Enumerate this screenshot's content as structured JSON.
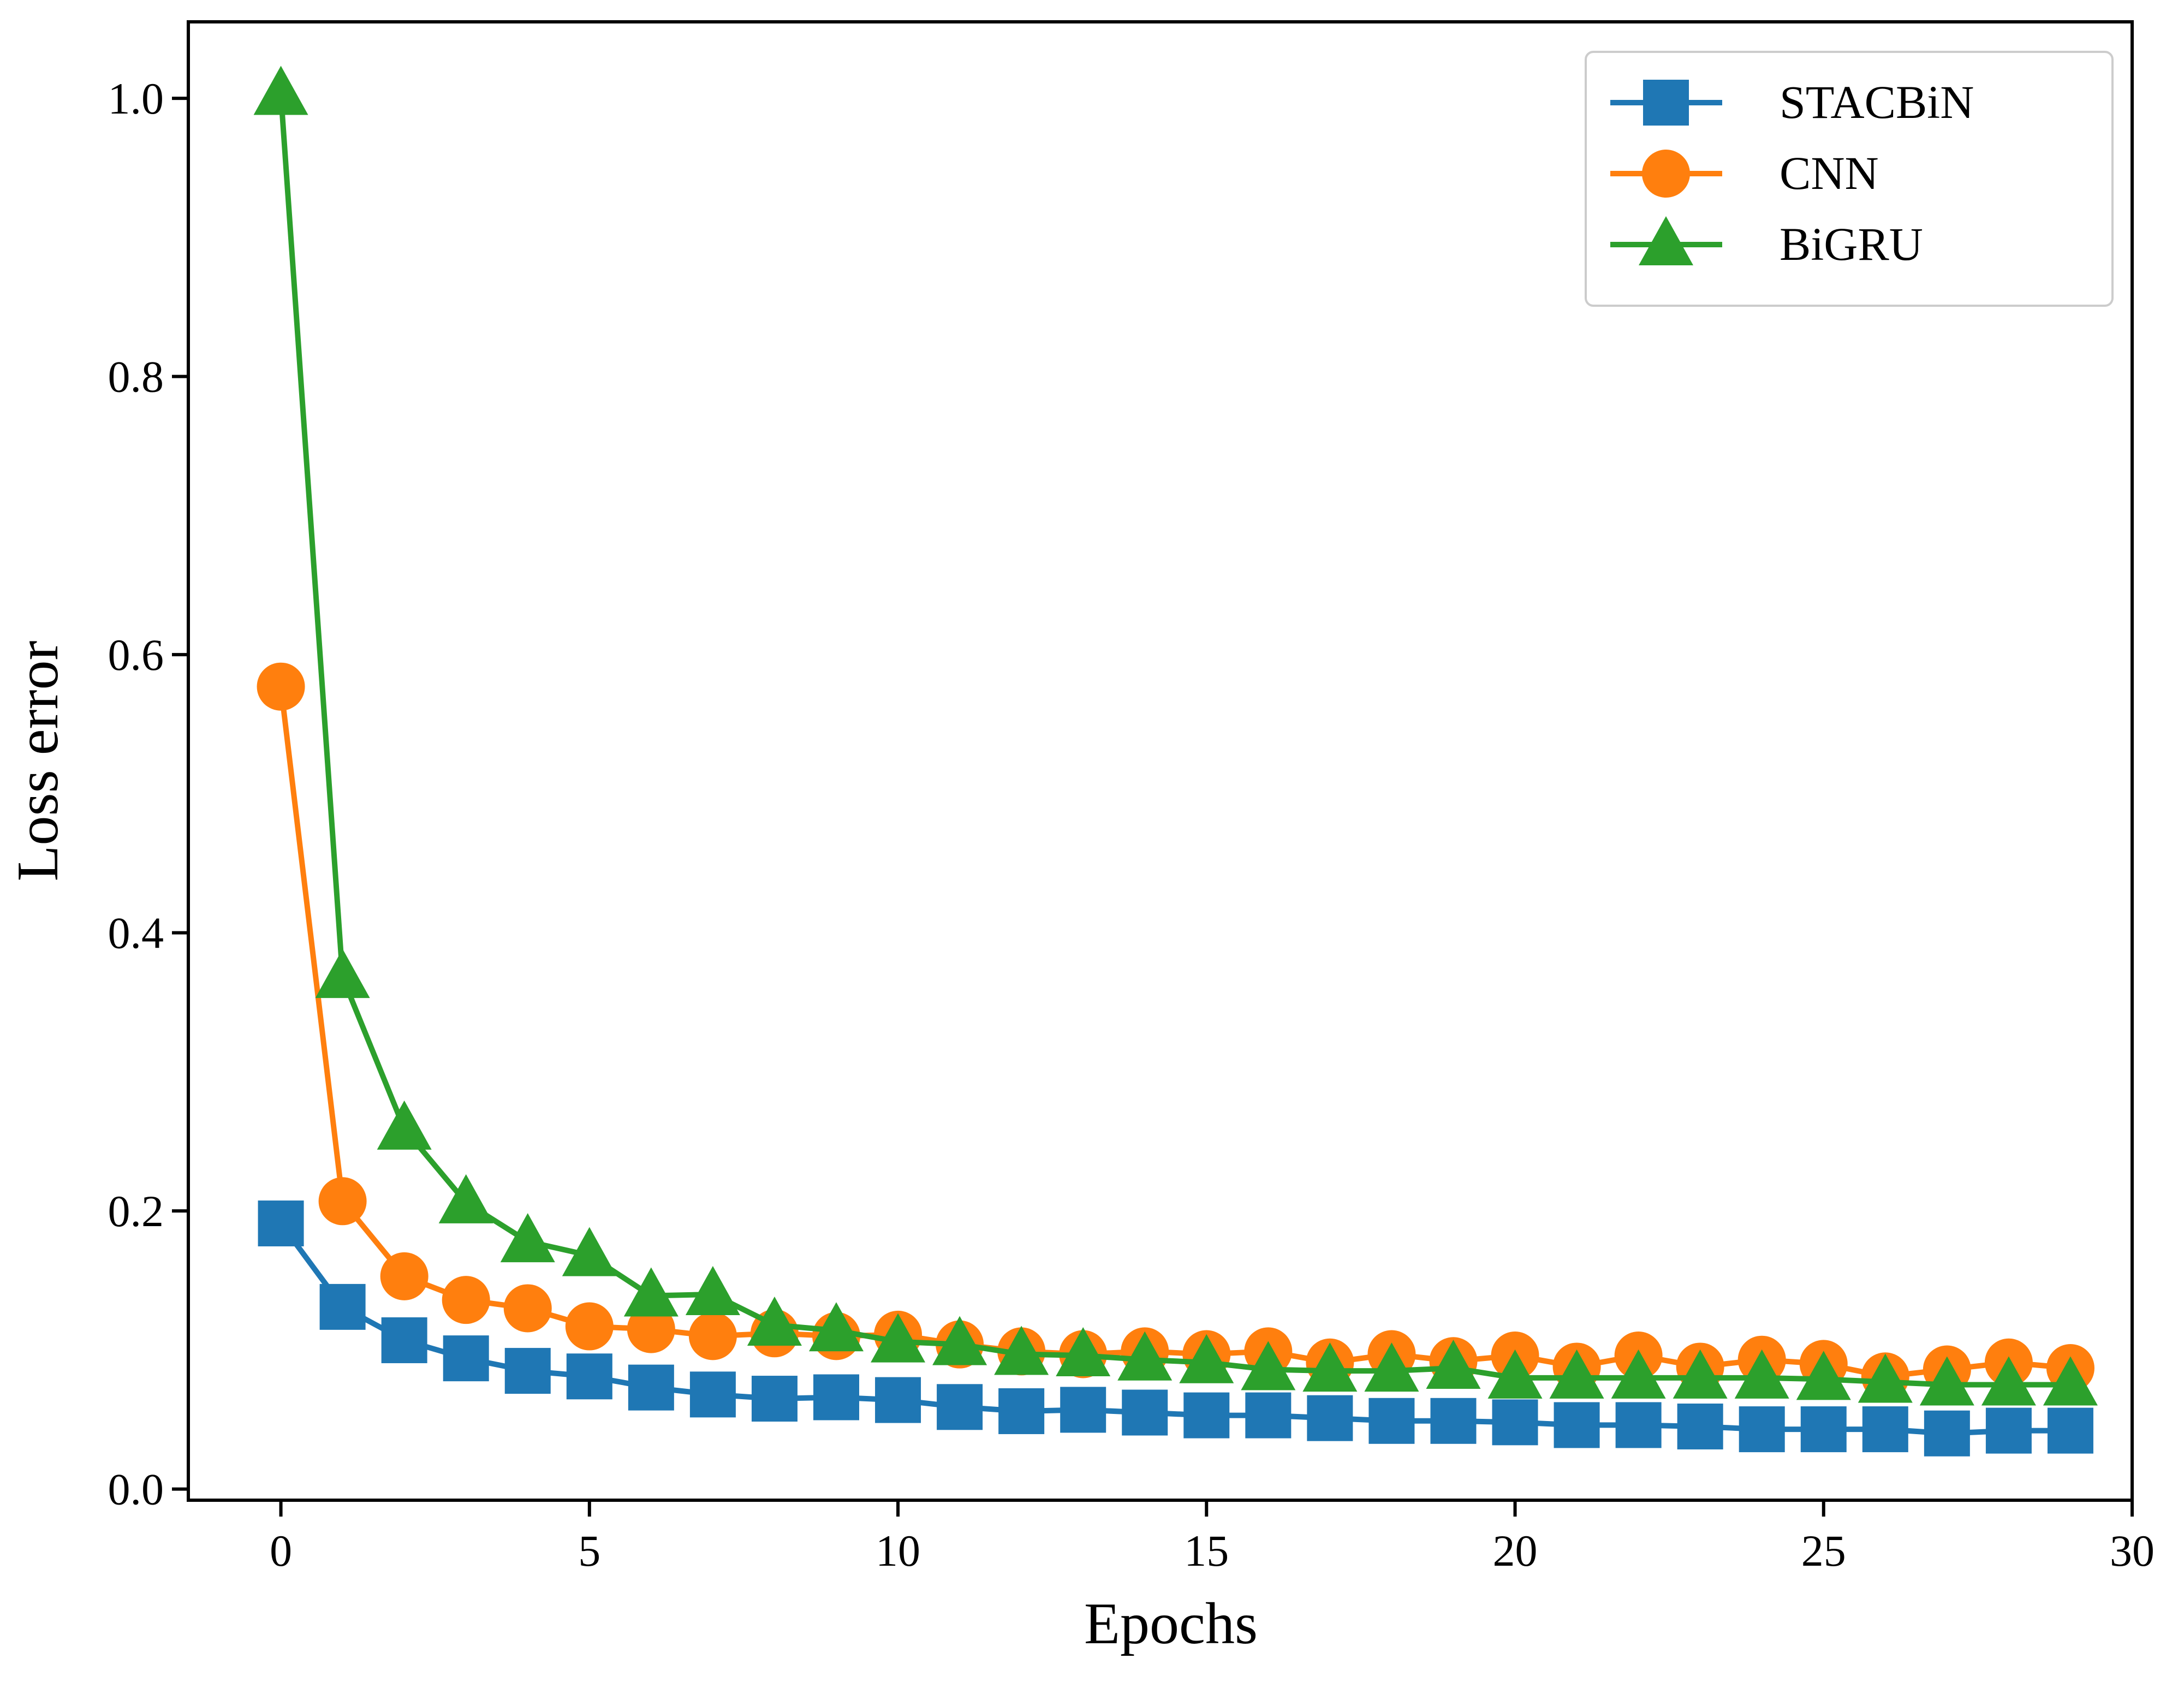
{
  "chart_data": {
    "type": "line",
    "title": "",
    "xlabel": "Epochs",
    "ylabel": "Loss error",
    "xlim": [
      -1.5,
      30
    ],
    "ylim": [
      -0.008,
      1.055
    ],
    "xticks": [
      0,
      5,
      10,
      15,
      20,
      25,
      30
    ],
    "xtick_labels": [
      "0",
      "5",
      "10",
      "15",
      "20",
      "25",
      "30"
    ],
    "yticks": [
      0.0,
      0.2,
      0.4,
      0.6,
      0.8,
      1.0
    ],
    "ytick_labels": [
      "0.0",
      "0.2",
      "0.4",
      "0.6",
      "0.8",
      "1.0"
    ],
    "grid": false,
    "legend_position": "top-right",
    "x": [
      0,
      1,
      2,
      3,
      4,
      5,
      6,
      7,
      8,
      9,
      10,
      11,
      12,
      13,
      14,
      15,
      16,
      17,
      18,
      19,
      20,
      21,
      22,
      23,
      24,
      25,
      26,
      27,
      28,
      29
    ],
    "series": [
      {
        "name": "STACBiN",
        "color": "#1f77b4",
        "marker": "square",
        "values": [
          0.191,
          0.131,
          0.107,
          0.094,
          0.085,
          0.081,
          0.073,
          0.068,
          0.065,
          0.066,
          0.064,
          0.059,
          0.056,
          0.057,
          0.055,
          0.053,
          0.053,
          0.051,
          0.049,
          0.049,
          0.048,
          0.046,
          0.046,
          0.045,
          0.043,
          0.043,
          0.043,
          0.04,
          0.042,
          0.042
        ]
      },
      {
        "name": "CNN",
        "color": "#ff7f0e",
        "marker": "circle",
        "values": [
          0.577,
          0.207,
          0.153,
          0.136,
          0.13,
          0.117,
          0.115,
          0.11,
          0.112,
          0.11,
          0.111,
          0.104,
          0.099,
          0.097,
          0.099,
          0.097,
          0.099,
          0.091,
          0.097,
          0.092,
          0.096,
          0.088,
          0.096,
          0.088,
          0.093,
          0.09,
          0.081,
          0.086,
          0.091,
          0.087
        ]
      },
      {
        "name": "BiGRU",
        "color": "#2ca02c",
        "marker": "triangle",
        "values": [
          1.003,
          0.368,
          0.259,
          0.206,
          0.178,
          0.168,
          0.139,
          0.14,
          0.118,
          0.114,
          0.106,
          0.104,
          0.097,
          0.096,
          0.093,
          0.091,
          0.086,
          0.085,
          0.085,
          0.087,
          0.08,
          0.08,
          0.08,
          0.08,
          0.08,
          0.079,
          0.077,
          0.075,
          0.075,
          0.075
        ]
      }
    ]
  }
}
